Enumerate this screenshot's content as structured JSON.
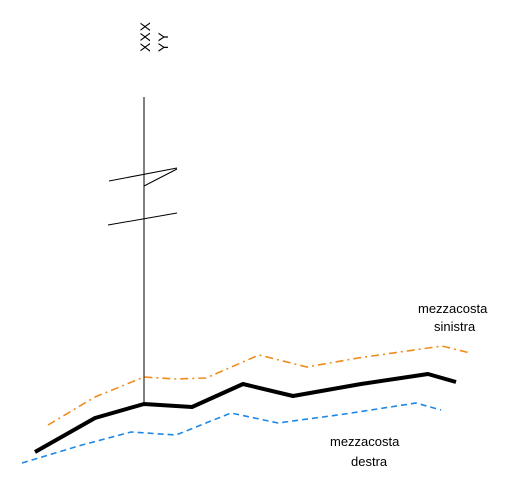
{
  "vertical_labels": {
    "line1": "XXX",
    "line2": "YY"
  },
  "labels": {
    "left_slope_line1": "mezzacosta",
    "left_slope_line2": "sinistra",
    "right_slope_line1": "mezzacosta",
    "right_slope_line2": "destra"
  },
  "colors": {
    "centerline": "#000000",
    "pole": "#000000",
    "left_slope": "#f08c1e",
    "right_slope": "#1e88e5",
    "background": "#ffffff"
  }
}
